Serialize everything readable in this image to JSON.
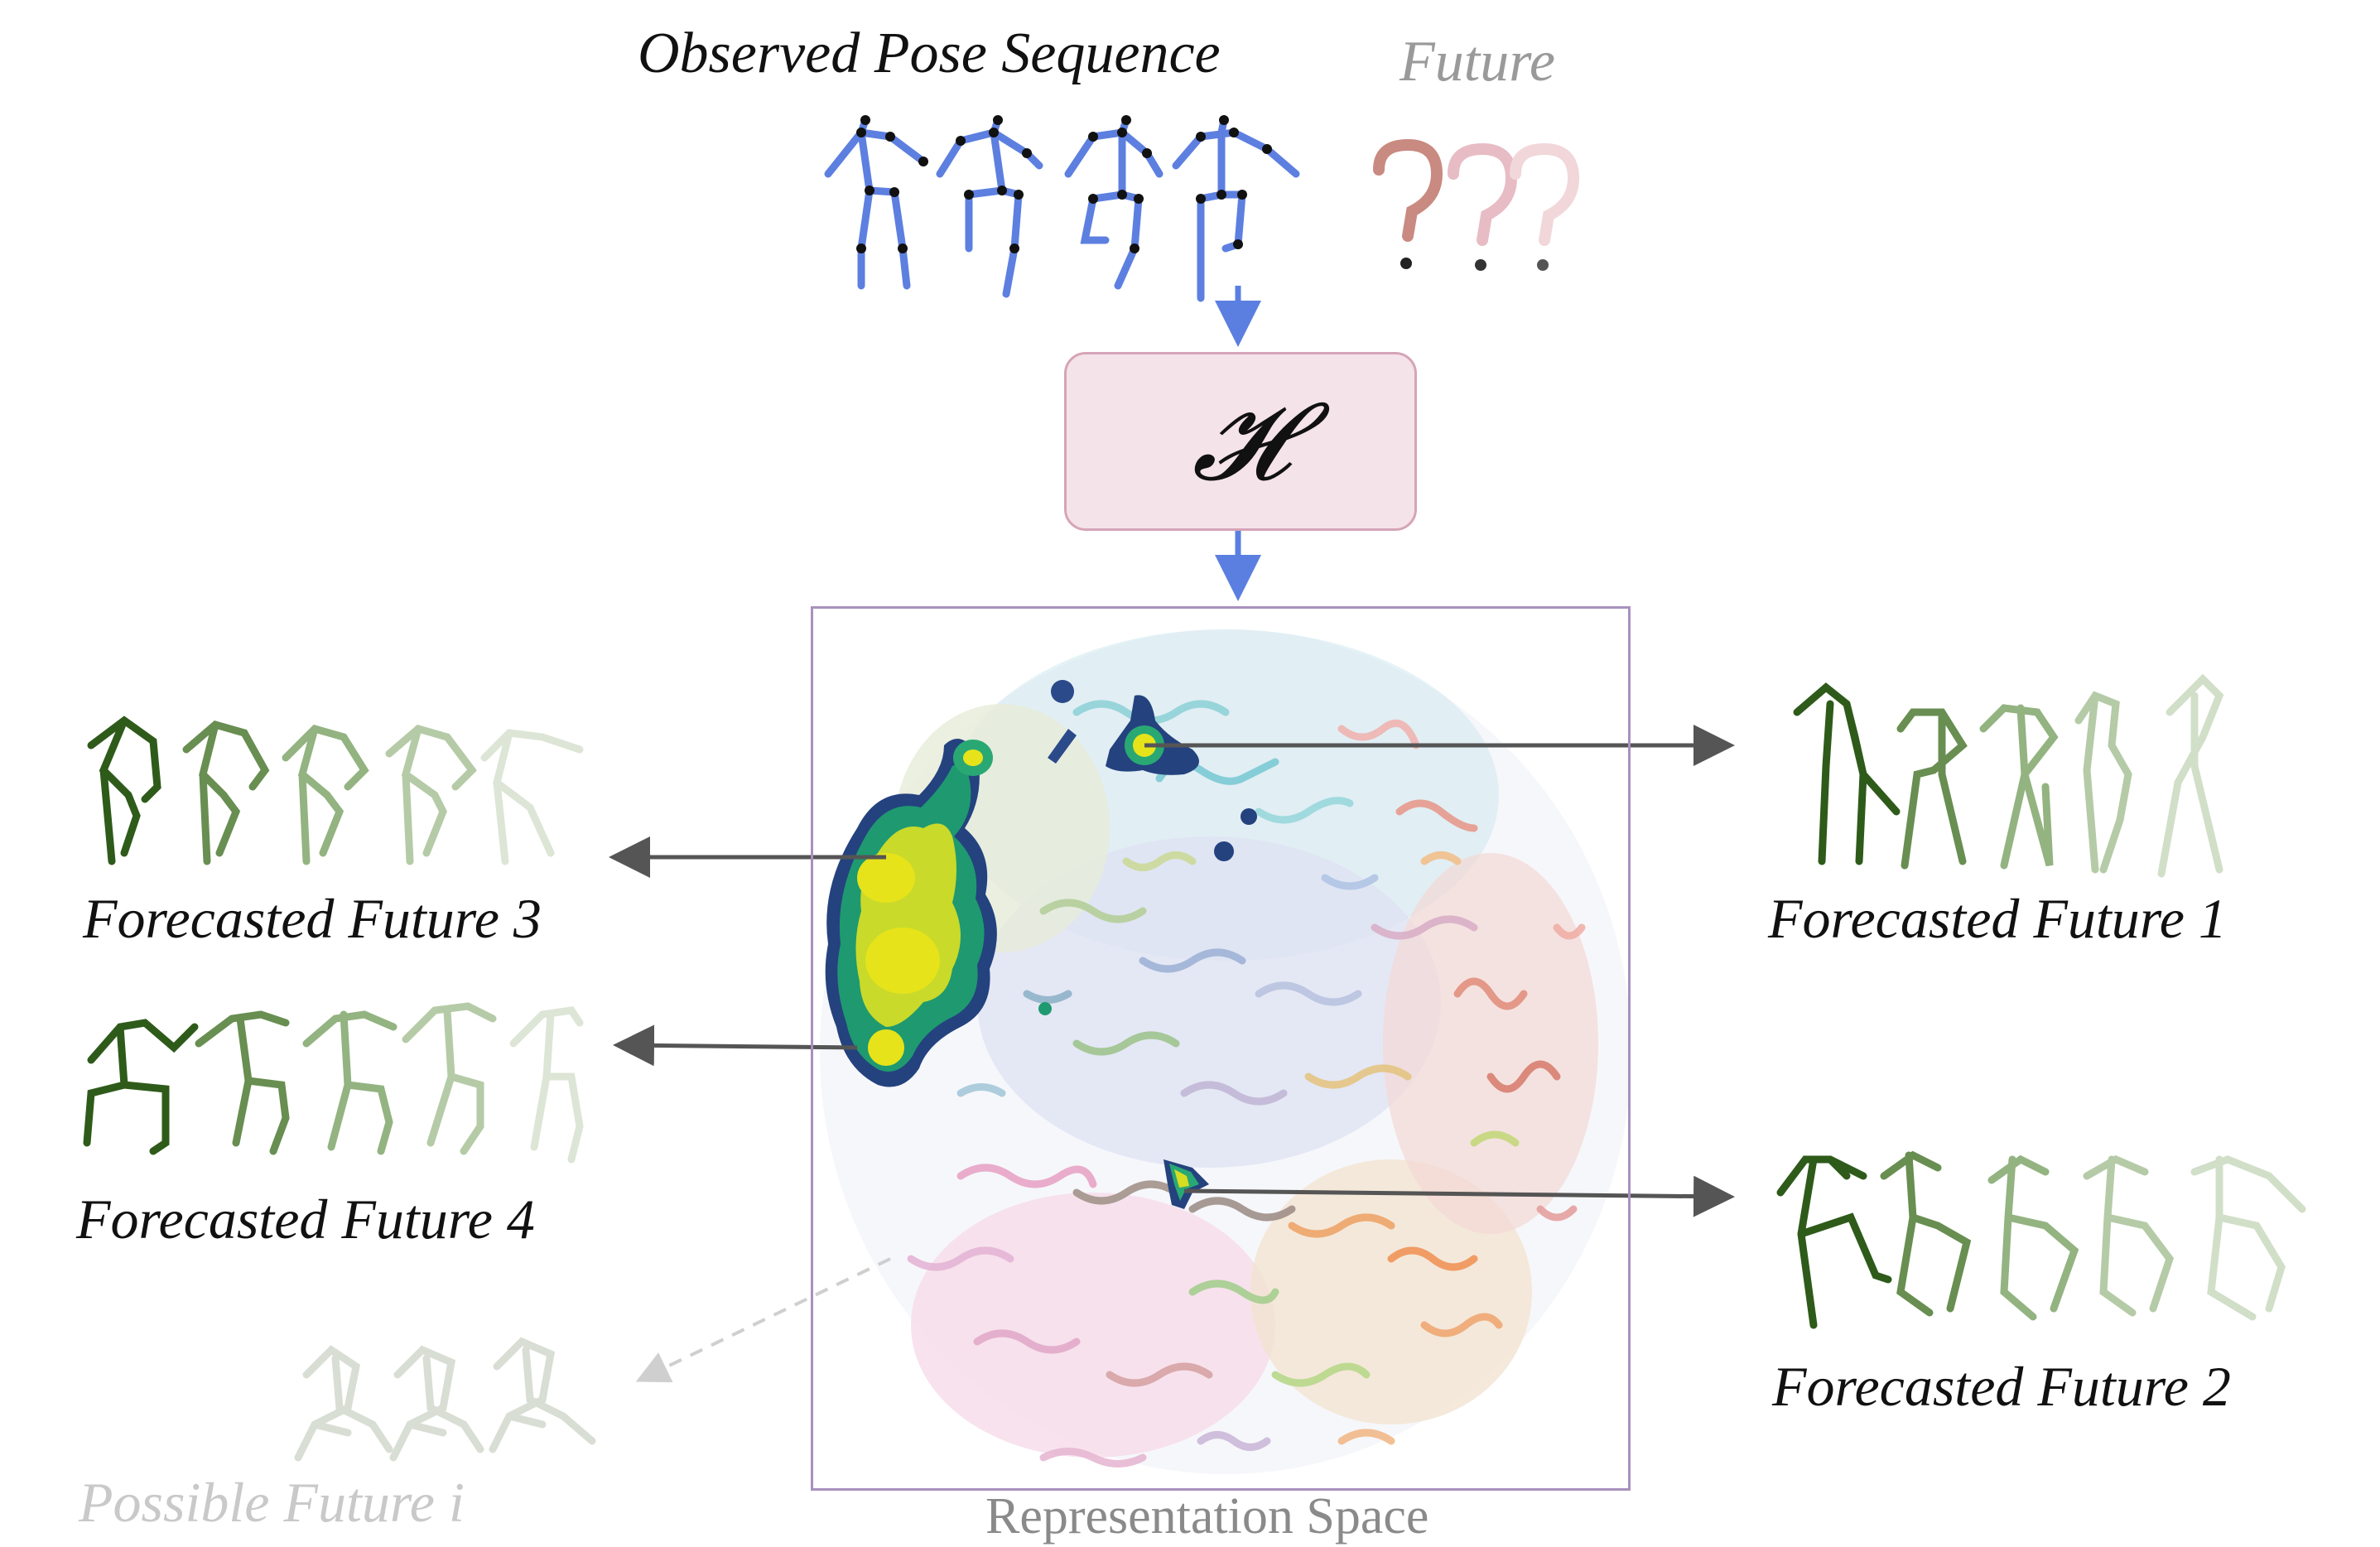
{
  "labels": {
    "observed": "Observed Pose Sequence",
    "future": "Future",
    "forecast_1": "Forecasted Future 1",
    "forecast_2": "Forecasted Future 2",
    "forecast_3": "Forecasted Future 3",
    "forecast_4": "Forecasted Future 4",
    "possible_i": "Possible Future i",
    "representation_space": "Representation Space",
    "model_symbol": "𝓗"
  },
  "colors": {
    "observed_pose": "#5c7fe0",
    "future_question": "#c98a82",
    "forecast_pose": "#3e6b24",
    "arrow": "#555555",
    "input_arrow": "#5b7fe0",
    "model_box": "#f4e4ea",
    "model_border": "#d6a4b7",
    "space_border": "#a892bd",
    "density_low": "#2b4a8a",
    "density_mid": "#1f9a70",
    "density_high": "#e2e21a"
  }
}
